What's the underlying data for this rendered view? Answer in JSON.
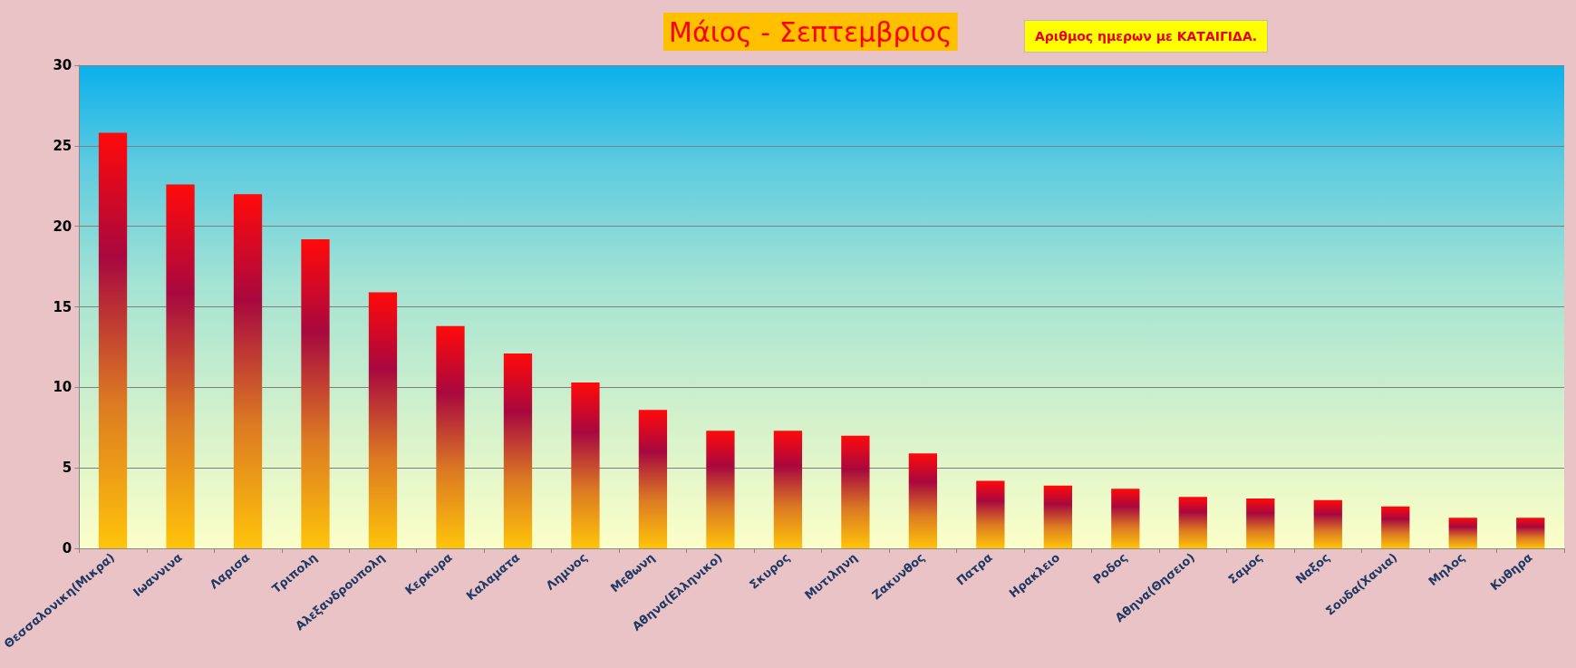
{
  "chart_data": {
    "type": "bar",
    "title": "Μάιος - Σεπτεμβριος",
    "subtitle": "Αριθμος ημερων με ΚΑΤΑΙΓΙΔΑ.",
    "categories": [
      "Θεσσαλονικη(Μικρα)",
      "Ιωαννινα",
      "Λαρισα",
      "Τριπολη",
      "Αλεξανδρουπολη",
      "Κερκυρα",
      "Καλαματα",
      "Λημνος",
      "Μεθωνη",
      "Αθηνα(Ελληνικο)",
      "Σκυρος",
      "Μυτιληνη",
      "Ζακυνθος",
      "Πατρα",
      "Ηρακλειο",
      "Ροδος",
      "Αθηνα(Θησειο)",
      "Σαμος",
      "Ναξος",
      "Σουδα(Χανια)",
      "Μηλος",
      "Κυθηρα"
    ],
    "values": [
      25.8,
      22.6,
      22.0,
      19.2,
      15.9,
      13.8,
      12.1,
      10.3,
      8.6,
      7.3,
      7.3,
      7.0,
      5.9,
      4.2,
      3.9,
      3.7,
      3.2,
      3.1,
      3.0,
      2.6,
      1.9,
      1.9
    ],
    "color": "#a8083f",
    "ylim": [
      0,
      30
    ],
    "yticks": [
      0,
      5,
      10,
      15,
      20,
      25,
      30
    ],
    "grid": "y"
  }
}
